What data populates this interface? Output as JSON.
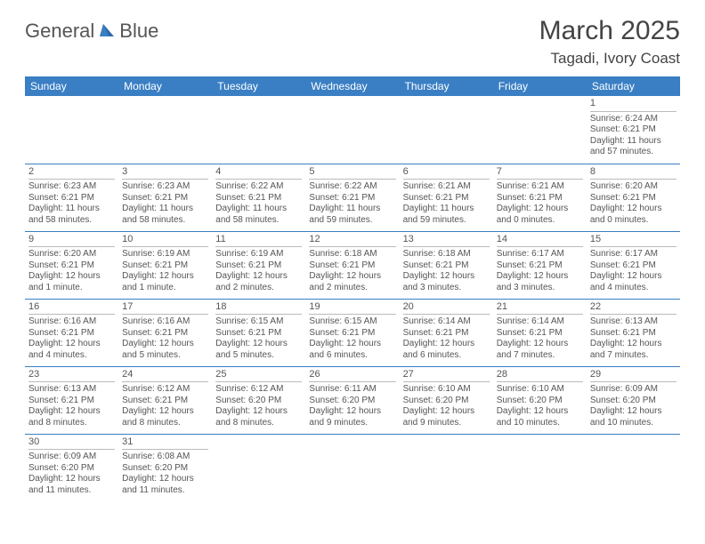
{
  "brand": {
    "name_a": "General",
    "name_b": "Blue"
  },
  "title": "March 2025",
  "location": "Tagadi, Ivory Coast",
  "colors": {
    "header_bg": "#3a7fc4",
    "header_fg": "#ffffff",
    "rule": "#3a7fc4",
    "text": "#555555"
  },
  "daysOfWeek": [
    "Sunday",
    "Monday",
    "Tuesday",
    "Wednesday",
    "Thursday",
    "Friday",
    "Saturday"
  ],
  "firstDayIndex": 6,
  "daysInMonth": 31,
  "cells": {
    "1": {
      "sunrise": "Sunrise: 6:24 AM",
      "sunset": "Sunset: 6:21 PM",
      "daylight": "Daylight: 11 hours and 57 minutes."
    },
    "2": {
      "sunrise": "Sunrise: 6:23 AM",
      "sunset": "Sunset: 6:21 PM",
      "daylight": "Daylight: 11 hours and 58 minutes."
    },
    "3": {
      "sunrise": "Sunrise: 6:23 AM",
      "sunset": "Sunset: 6:21 PM",
      "daylight": "Daylight: 11 hours and 58 minutes."
    },
    "4": {
      "sunrise": "Sunrise: 6:22 AM",
      "sunset": "Sunset: 6:21 PM",
      "daylight": "Daylight: 11 hours and 58 minutes."
    },
    "5": {
      "sunrise": "Sunrise: 6:22 AM",
      "sunset": "Sunset: 6:21 PM",
      "daylight": "Daylight: 11 hours and 59 minutes."
    },
    "6": {
      "sunrise": "Sunrise: 6:21 AM",
      "sunset": "Sunset: 6:21 PM",
      "daylight": "Daylight: 11 hours and 59 minutes."
    },
    "7": {
      "sunrise": "Sunrise: 6:21 AM",
      "sunset": "Sunset: 6:21 PM",
      "daylight": "Daylight: 12 hours and 0 minutes."
    },
    "8": {
      "sunrise": "Sunrise: 6:20 AM",
      "sunset": "Sunset: 6:21 PM",
      "daylight": "Daylight: 12 hours and 0 minutes."
    },
    "9": {
      "sunrise": "Sunrise: 6:20 AM",
      "sunset": "Sunset: 6:21 PM",
      "daylight": "Daylight: 12 hours and 1 minute."
    },
    "10": {
      "sunrise": "Sunrise: 6:19 AM",
      "sunset": "Sunset: 6:21 PM",
      "daylight": "Daylight: 12 hours and 1 minute."
    },
    "11": {
      "sunrise": "Sunrise: 6:19 AM",
      "sunset": "Sunset: 6:21 PM",
      "daylight": "Daylight: 12 hours and 2 minutes."
    },
    "12": {
      "sunrise": "Sunrise: 6:18 AM",
      "sunset": "Sunset: 6:21 PM",
      "daylight": "Daylight: 12 hours and 2 minutes."
    },
    "13": {
      "sunrise": "Sunrise: 6:18 AM",
      "sunset": "Sunset: 6:21 PM",
      "daylight": "Daylight: 12 hours and 3 minutes."
    },
    "14": {
      "sunrise": "Sunrise: 6:17 AM",
      "sunset": "Sunset: 6:21 PM",
      "daylight": "Daylight: 12 hours and 3 minutes."
    },
    "15": {
      "sunrise": "Sunrise: 6:17 AM",
      "sunset": "Sunset: 6:21 PM",
      "daylight": "Daylight: 12 hours and 4 minutes."
    },
    "16": {
      "sunrise": "Sunrise: 6:16 AM",
      "sunset": "Sunset: 6:21 PM",
      "daylight": "Daylight: 12 hours and 4 minutes."
    },
    "17": {
      "sunrise": "Sunrise: 6:16 AM",
      "sunset": "Sunset: 6:21 PM",
      "daylight": "Daylight: 12 hours and 5 minutes."
    },
    "18": {
      "sunrise": "Sunrise: 6:15 AM",
      "sunset": "Sunset: 6:21 PM",
      "daylight": "Daylight: 12 hours and 5 minutes."
    },
    "19": {
      "sunrise": "Sunrise: 6:15 AM",
      "sunset": "Sunset: 6:21 PM",
      "daylight": "Daylight: 12 hours and 6 minutes."
    },
    "20": {
      "sunrise": "Sunrise: 6:14 AM",
      "sunset": "Sunset: 6:21 PM",
      "daylight": "Daylight: 12 hours and 6 minutes."
    },
    "21": {
      "sunrise": "Sunrise: 6:14 AM",
      "sunset": "Sunset: 6:21 PM",
      "daylight": "Daylight: 12 hours and 7 minutes."
    },
    "22": {
      "sunrise": "Sunrise: 6:13 AM",
      "sunset": "Sunset: 6:21 PM",
      "daylight": "Daylight: 12 hours and 7 minutes."
    },
    "23": {
      "sunrise": "Sunrise: 6:13 AM",
      "sunset": "Sunset: 6:21 PM",
      "daylight": "Daylight: 12 hours and 8 minutes."
    },
    "24": {
      "sunrise": "Sunrise: 6:12 AM",
      "sunset": "Sunset: 6:21 PM",
      "daylight": "Daylight: 12 hours and 8 minutes."
    },
    "25": {
      "sunrise": "Sunrise: 6:12 AM",
      "sunset": "Sunset: 6:20 PM",
      "daylight": "Daylight: 12 hours and 8 minutes."
    },
    "26": {
      "sunrise": "Sunrise: 6:11 AM",
      "sunset": "Sunset: 6:20 PM",
      "daylight": "Daylight: 12 hours and 9 minutes."
    },
    "27": {
      "sunrise": "Sunrise: 6:10 AM",
      "sunset": "Sunset: 6:20 PM",
      "daylight": "Daylight: 12 hours and 9 minutes."
    },
    "28": {
      "sunrise": "Sunrise: 6:10 AM",
      "sunset": "Sunset: 6:20 PM",
      "daylight": "Daylight: 12 hours and 10 minutes."
    },
    "29": {
      "sunrise": "Sunrise: 6:09 AM",
      "sunset": "Sunset: 6:20 PM",
      "daylight": "Daylight: 12 hours and 10 minutes."
    },
    "30": {
      "sunrise": "Sunrise: 6:09 AM",
      "sunset": "Sunset: 6:20 PM",
      "daylight": "Daylight: 12 hours and 11 minutes."
    },
    "31": {
      "sunrise": "Sunrise: 6:08 AM",
      "sunset": "Sunset: 6:20 PM",
      "daylight": "Daylight: 12 hours and 11 minutes."
    }
  }
}
